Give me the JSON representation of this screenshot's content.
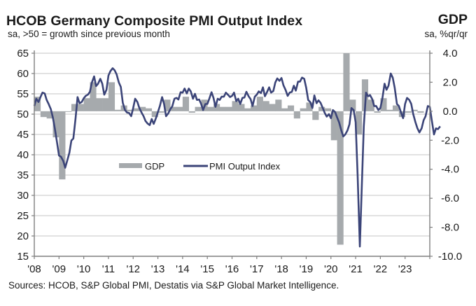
{
  "header": {
    "title": "HCOB Germany Composite PMI Output Index",
    "subtitle": "sa, >50 = growth since previous month",
    "right_title": "GDP",
    "right_subtitle": "sa, %qr/qr"
  },
  "footer": {
    "source": "Sources: HCOB, S&P Global PMI, Destatis via S&P Global Market Intelligence."
  },
  "colors": {
    "pmi_line": "#3b4478",
    "gdp_bar": "#a6aaad",
    "grid": "#d9d9d9",
    "axis": "#7f7f7f"
  },
  "chart_data": {
    "type": "bar+line",
    "title": "HCOB Germany Composite PMI Output Index",
    "subtitle": "sa, >50 = growth since previous month",
    "xlabel": "",
    "ylabel_left": "PMI, sa, >50 = growth since previous month",
    "ylabel_right": "GDP, sa, %qr/qr",
    "x_ticks": [
      "'08",
      "'09",
      "'10",
      "'11",
      "'12",
      "'13",
      "'14",
      "'15",
      "'16",
      "'17",
      "'18",
      "'19",
      "'20",
      "'21",
      "'22",
      "'23"
    ],
    "x_range": [
      2008.0,
      2024.0
    ],
    "y_left": {
      "ticks": [
        15,
        20,
        25,
        30,
        35,
        40,
        45,
        50,
        55,
        60,
        65
      ],
      "range": [
        15,
        65
      ]
    },
    "y_right": {
      "ticks": [
        "4.0",
        "2.0",
        "0.0",
        "-2.0",
        "-4.0",
        "-6.0",
        "-8.0",
        "-10.0"
      ],
      "range": [
        -10,
        4
      ]
    },
    "grid": true,
    "legend": {
      "position": "center-left",
      "entries": [
        "GDP",
        "PMI Output Index"
      ]
    },
    "series": [
      {
        "name": "GDP",
        "type": "bar",
        "axis": "right",
        "quarters": [
          "2008Q1",
          "2008Q2",
          "2008Q3",
          "2008Q4",
          "2009Q1",
          "2009Q2",
          "2009Q3",
          "2009Q4",
          "2010Q1",
          "2010Q2",
          "2010Q3",
          "2010Q4",
          "2011Q1",
          "2011Q2",
          "2011Q3",
          "2011Q4",
          "2012Q1",
          "2012Q2",
          "2012Q3",
          "2012Q4",
          "2013Q1",
          "2013Q2",
          "2013Q3",
          "2013Q4",
          "2014Q1",
          "2014Q2",
          "2014Q3",
          "2014Q4",
          "2015Q1",
          "2015Q2",
          "2015Q3",
          "2015Q4",
          "2016Q1",
          "2016Q2",
          "2016Q3",
          "2016Q4",
          "2017Q1",
          "2017Q2",
          "2017Q3",
          "2017Q4",
          "2018Q1",
          "2018Q2",
          "2018Q3",
          "2018Q4",
          "2019Q1",
          "2019Q2",
          "2019Q3",
          "2019Q4",
          "2020Q1",
          "2020Q2",
          "2020Q3",
          "2020Q4",
          "2021Q1",
          "2021Q2",
          "2021Q3",
          "2021Q4",
          "2022Q1",
          "2022Q2",
          "2022Q3",
          "2022Q4",
          "2023Q1",
          "2023Q2",
          "2023Q3"
        ],
        "values": [
          1.0,
          -0.4,
          -0.5,
          -1.8,
          -4.7,
          0.0,
          0.5,
          0.5,
          0.9,
          2.0,
          0.9,
          0.9,
          2.0,
          0.1,
          0.4,
          0.1,
          0.2,
          0.3,
          0.2,
          -0.4,
          -0.1,
          0.8,
          0.3,
          0.3,
          1.0,
          -0.1,
          0.3,
          0.8,
          0.3,
          0.5,
          0.3,
          0.3,
          0.7,
          0.5,
          0.2,
          0.4,
          1.0,
          0.7,
          0.5,
          0.8,
          0.2,
          0.4,
          -0.5,
          0.2,
          0.6,
          -0.6,
          0.3,
          0.2,
          -2.0,
          -9.2,
          8.5,
          0.8,
          -1.6,
          2.2,
          0.8,
          -0.1,
          0.9,
          0.1,
          0.4,
          -0.4,
          -0.1,
          0.1,
          -0.1
        ]
      },
      {
        "name": "PMI Output Index",
        "type": "line",
        "axis": "left",
        "points": [
          [
            2008.0,
            52.0
          ],
          [
            2008.08,
            53.8
          ],
          [
            2008.17,
            53.0
          ],
          [
            2008.25,
            54.2
          ],
          [
            2008.33,
            55.3
          ],
          [
            2008.42,
            55.1
          ],
          [
            2008.5,
            53.5
          ],
          [
            2008.58,
            52.5
          ],
          [
            2008.67,
            51.2
          ],
          [
            2008.75,
            49.2
          ],
          [
            2008.83,
            46.5
          ],
          [
            2008.92,
            43.0
          ],
          [
            2009.0,
            39.8
          ],
          [
            2009.08,
            39.5
          ],
          [
            2009.17,
            38.5
          ],
          [
            2009.25,
            36.8
          ],
          [
            2009.33,
            38.5
          ],
          [
            2009.42,
            40.5
          ],
          [
            2009.5,
            43.5
          ],
          [
            2009.58,
            44.0
          ],
          [
            2009.67,
            49.0
          ],
          [
            2009.75,
            54.2
          ],
          [
            2009.83,
            52.7
          ],
          [
            2009.92,
            53.0
          ],
          [
            2010.0,
            53.9
          ],
          [
            2010.08,
            54.5
          ],
          [
            2010.17,
            54.8
          ],
          [
            2010.25,
            55.5
          ],
          [
            2010.33,
            57.8
          ],
          [
            2010.42,
            59.3
          ],
          [
            2010.5,
            56.9
          ],
          [
            2010.58,
            57.5
          ],
          [
            2010.67,
            58.7
          ],
          [
            2010.75,
            57.5
          ],
          [
            2010.83,
            54.8
          ],
          [
            2010.92,
            56.0
          ],
          [
            2011.0,
            59.5
          ],
          [
            2011.08,
            60.6
          ],
          [
            2011.17,
            61.3
          ],
          [
            2011.25,
            60.8
          ],
          [
            2011.33,
            59.8
          ],
          [
            2011.42,
            57.8
          ],
          [
            2011.5,
            56.7
          ],
          [
            2011.58,
            52.8
          ],
          [
            2011.67,
            51.0
          ],
          [
            2011.75,
            50.4
          ],
          [
            2011.83,
            50.3
          ],
          [
            2011.92,
            49.5
          ],
          [
            2012.0,
            51.5
          ],
          [
            2012.08,
            53.8
          ],
          [
            2012.17,
            53.0
          ],
          [
            2012.25,
            51.5
          ],
          [
            2012.33,
            50.5
          ],
          [
            2012.42,
            49.5
          ],
          [
            2012.5,
            48.3
          ],
          [
            2012.58,
            47.7
          ],
          [
            2012.67,
            47.3
          ],
          [
            2012.75,
            48.8
          ],
          [
            2012.83,
            47.6
          ],
          [
            2012.92,
            49.0
          ],
          [
            2013.0,
            50.5
          ],
          [
            2013.08,
            52.0
          ],
          [
            2013.17,
            54.2
          ],
          [
            2013.25,
            52.5
          ],
          [
            2013.33,
            49.5
          ],
          [
            2013.42,
            50.2
          ],
          [
            2013.5,
            51.2
          ],
          [
            2013.58,
            51.9
          ],
          [
            2013.67,
            53.8
          ],
          [
            2013.75,
            54.0
          ],
          [
            2013.83,
            53.6
          ],
          [
            2013.92,
            55.4
          ],
          [
            2014.0,
            55.3
          ],
          [
            2014.08,
            56.3
          ],
          [
            2014.17,
            55.1
          ],
          [
            2014.25,
            56.3
          ],
          [
            2014.33,
            55.6
          ],
          [
            2014.42,
            53.8
          ],
          [
            2014.5,
            55.0
          ],
          [
            2014.58,
            53.5
          ],
          [
            2014.67,
            53.6
          ],
          [
            2014.75,
            52.5
          ],
          [
            2014.83,
            51.0
          ],
          [
            2014.92,
            52.5
          ],
          [
            2015.0,
            52.5
          ],
          [
            2015.08,
            53.8
          ],
          [
            2015.17,
            55.4
          ],
          [
            2015.25,
            54.0
          ],
          [
            2015.33,
            51.8
          ],
          [
            2015.42,
            53.8
          ],
          [
            2015.5,
            53.5
          ],
          [
            2015.58,
            54.3
          ],
          [
            2015.67,
            54.3
          ],
          [
            2015.75,
            55.3
          ],
          [
            2015.83,
            54.8
          ],
          [
            2015.92,
            54.2
          ],
          [
            2016.0,
            54.5
          ],
          [
            2016.08,
            55.3
          ],
          [
            2016.17,
            53.2
          ],
          [
            2016.25,
            53.8
          ],
          [
            2016.33,
            52.5
          ],
          [
            2016.42,
            54.0
          ],
          [
            2016.5,
            54.1
          ],
          [
            2016.58,
            55.5
          ],
          [
            2016.67,
            54.4
          ],
          [
            2016.75,
            53.7
          ],
          [
            2016.83,
            52.0
          ],
          [
            2016.92,
            54.3
          ],
          [
            2017.0,
            54.8
          ],
          [
            2017.08,
            55.6
          ],
          [
            2017.17,
            55.2
          ],
          [
            2017.25,
            56.6
          ],
          [
            2017.33,
            54.4
          ],
          [
            2017.42,
            55.5
          ],
          [
            2017.5,
            56.6
          ],
          [
            2017.58,
            55.3
          ],
          [
            2017.67,
            55.7
          ],
          [
            2017.75,
            57.8
          ],
          [
            2017.83,
            58.8
          ],
          [
            2017.92,
            58.2
          ],
          [
            2018.0,
            58.9
          ],
          [
            2018.08,
            57.1
          ],
          [
            2018.17,
            55.9
          ],
          [
            2018.25,
            54.5
          ],
          [
            2018.33,
            55.3
          ],
          [
            2018.42,
            55.5
          ],
          [
            2018.5,
            57.0
          ],
          [
            2018.58,
            55.8
          ],
          [
            2018.67,
            58.0
          ],
          [
            2018.75,
            58.0
          ],
          [
            2018.83,
            59.0
          ],
          [
            2018.92,
            58.7
          ],
          [
            2019.0,
            56.5
          ],
          [
            2019.08,
            53.5
          ],
          [
            2019.17,
            52.9
          ],
          [
            2019.25,
            51.5
          ],
          [
            2019.33,
            54.6
          ],
          [
            2019.42,
            52.7
          ],
          [
            2019.5,
            53.4
          ],
          [
            2019.58,
            52.8
          ],
          [
            2019.67,
            51.5
          ],
          [
            2019.75,
            50.3
          ],
          [
            2019.83,
            49.4
          ],
          [
            2019.92,
            50.0
          ],
          [
            2020.0,
            49.0
          ],
          [
            2020.08,
            51.0
          ],
          [
            2020.17,
            50.5
          ],
          [
            2020.25,
            49.2
          ],
          [
            2020.33,
            48.0
          ],
          [
            2020.42,
            46.0
          ],
          [
            2020.5,
            44.5
          ],
          [
            2020.58,
            45.0
          ],
          [
            2020.67,
            46.0
          ],
          [
            2020.75,
            47.5
          ],
          [
            2020.83,
            51.5
          ],
          [
            2020.92,
            51.0
          ],
          [
            2021.0,
            48.0
          ],
          [
            2021.08,
            35.0
          ],
          [
            2021.17,
            17.4
          ],
          [
            2021.25,
            32.3
          ],
          [
            2021.33,
            47.0
          ],
          [
            2021.42,
            55.3
          ],
          [
            2021.5,
            54.4
          ],
          [
            2021.58,
            54.7
          ],
          [
            2021.67,
            53.7
          ],
          [
            2021.75,
            52.0
          ],
          [
            2021.83,
            52.0
          ],
          [
            2021.92,
            51.0
          ],
          [
            2022.0,
            51.5
          ],
          [
            2022.08,
            53.8
          ],
          [
            2022.17,
            57.5
          ],
          [
            2022.25,
            56.0
          ],
          [
            2022.33,
            57.0
          ],
          [
            2022.42,
            60.0
          ],
          [
            2022.5,
            59.0
          ],
          [
            2022.58,
            56.5
          ],
          [
            2022.67,
            52.5
          ],
          [
            2022.75,
            52.0
          ],
          [
            2022.83,
            50.5
          ],
          [
            2022.92,
            49.0
          ],
          [
            2023.0,
            52.5
          ],
          [
            2023.08,
            54.0
          ],
          [
            2023.17,
            53.5
          ],
          [
            2023.25,
            52.5
          ],
          [
            2023.33,
            50.0
          ],
          [
            2023.42,
            48.0
          ],
          [
            2023.5,
            46.5
          ],
          [
            2023.58,
            45.5
          ],
          [
            2023.67,
            46.5
          ],
          [
            2023.75,
            48.5
          ],
          [
            2023.83,
            49.5
          ],
          [
            2023.92,
            52.0
          ],
          [
            2024.0,
            51.8
          ],
          [
            2024.08,
            48.5
          ],
          [
            2024.17,
            45.0
          ],
          [
            2024.25,
            46.5
          ],
          [
            2024.33,
            46.3
          ],
          [
            2024.42,
            47.0
          ]
        ]
      }
    ]
  }
}
